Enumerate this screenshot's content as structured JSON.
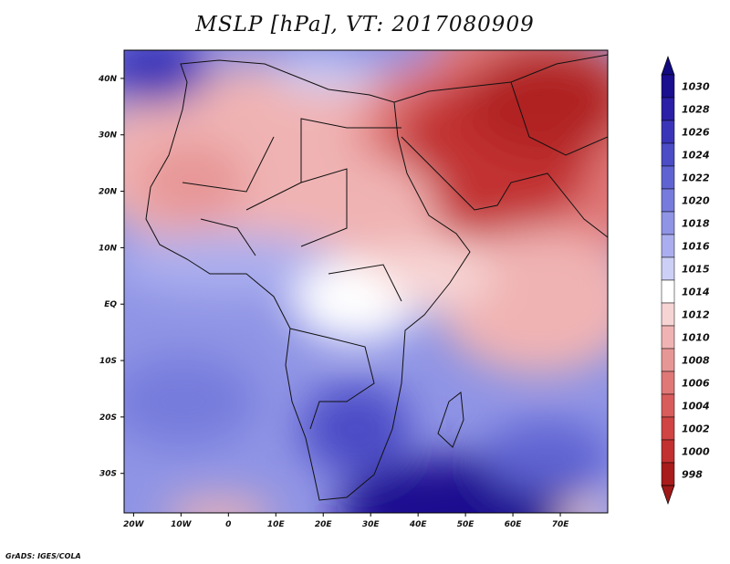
{
  "title": "MSLP [hPa], VT: 2017080909",
  "credit": "GrADS: IGES/COLA",
  "map": {
    "lon_range": [
      -22,
      80
    ],
    "lat_range": [
      -37,
      45
    ],
    "lon_ticks": [
      {
        "value": -20,
        "label": "20W"
      },
      {
        "value": -10,
        "label": "10W"
      },
      {
        "value": 0,
        "label": "0"
      },
      {
        "value": 10,
        "label": "10E"
      },
      {
        "value": 20,
        "label": "20E"
      },
      {
        "value": 30,
        "label": "30E"
      },
      {
        "value": 40,
        "label": "40E"
      },
      {
        "value": 50,
        "label": "50E"
      },
      {
        "value": 60,
        "label": "60E"
      },
      {
        "value": 70,
        "label": "70E"
      }
    ],
    "lat_ticks": [
      {
        "value": 40,
        "label": "40N"
      },
      {
        "value": 30,
        "label": "30N"
      },
      {
        "value": 20,
        "label": "20N"
      },
      {
        "value": 10,
        "label": "10N"
      },
      {
        "value": 0,
        "label": "EQ"
      },
      {
        "value": -10,
        "label": "10S"
      },
      {
        "value": -20,
        "label": "20S"
      },
      {
        "value": -30,
        "label": "30S"
      }
    ]
  },
  "colorbar": {
    "levels": [
      {
        "label": "1030",
        "color": "#1a0f8f"
      },
      {
        "label": "1028",
        "color": "#2a1fa6"
      },
      {
        "label": "1026",
        "color": "#3a35b8"
      },
      {
        "label": "1024",
        "color": "#4b4cc6"
      },
      {
        "label": "1022",
        "color": "#5f63d2"
      },
      {
        "label": "1020",
        "color": "#767bdc"
      },
      {
        "label": "1018",
        "color": "#8f94e5"
      },
      {
        "label": "1016",
        "color": "#aaaeee"
      },
      {
        "label": "1015",
        "color": "#cdd0f6"
      },
      {
        "label": "1014",
        "color": "#ffffff"
      },
      {
        "label": "1012",
        "color": "#f7d4d4"
      },
      {
        "label": "1010",
        "color": "#f0b3b3"
      },
      {
        "label": "1008",
        "color": "#e79696"
      },
      {
        "label": "1006",
        "color": "#e07878"
      },
      {
        "label": "1004",
        "color": "#d95c5c"
      },
      {
        "label": "1002",
        "color": "#d04444"
      },
      {
        "label": "1000",
        "color": "#c23030"
      },
      {
        "label": "998",
        "color": "#a81c1c"
      }
    ],
    "top_color": "#120a80",
    "bottom_color": "#a01818"
  }
}
